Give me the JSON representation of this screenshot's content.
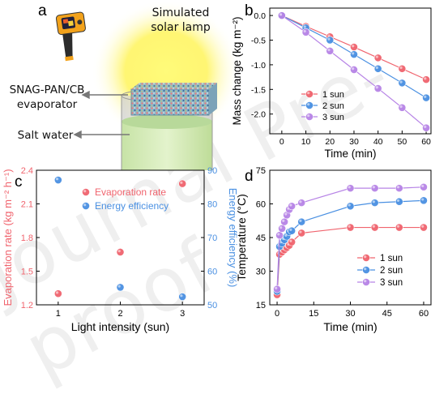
{
  "panels": {
    "a": "a",
    "b": "b",
    "c": "c",
    "d": "d"
  },
  "watermark": "Journal Pre-proof",
  "schematic": {
    "lamp_label_line1": "Simulated",
    "lamp_label_line2": "solar lamp",
    "evaporator_label_line1": "SNAG-PAN/CB",
    "evaporator_label_line2": "evaporator",
    "water_label": "Salt water",
    "icons": [
      "thermal-camera-icon",
      "solar-lamp-glow",
      "beaker-icon",
      "evaporator-block"
    ],
    "colors": {
      "glow": "#fff45a",
      "water": "#d5ebb8",
      "camera_body": "#f2a21b"
    }
  },
  "chart_data": [
    {
      "id": "b",
      "type": "line",
      "xlabel": "Time (min)",
      "ylabel": "Mass change (kg m⁻²)",
      "xlim": [
        -5,
        62
      ],
      "ylim": [
        -2.4,
        0.15
      ],
      "xticks": [
        0,
        10,
        20,
        30,
        40,
        50,
        60
      ],
      "yticks": [
        0.0,
        -0.5,
        -1.0,
        -1.5,
        -2.0
      ],
      "ytick_labels": [
        "0.0",
        "-0.5",
        "-1.0",
        "-1.5",
        "-2.0"
      ],
      "legend_position": "lower-left-inside",
      "x": [
        0,
        10,
        20,
        30,
        40,
        50,
        60
      ],
      "series": [
        {
          "name": "1 sun",
          "color": "#f0646e",
          "values": [
            0,
            -0.22,
            -0.43,
            -0.64,
            -0.86,
            -1.08,
            -1.3
          ]
        },
        {
          "name": "2 sun",
          "color": "#4a90e2",
          "values": [
            0,
            -0.25,
            -0.5,
            -0.79,
            -1.08,
            -1.37,
            -1.67
          ]
        },
        {
          "name": "3 sun",
          "color": "#b784e6",
          "values": [
            0,
            -0.34,
            -0.72,
            -1.1,
            -1.48,
            -1.87,
            -2.28
          ]
        }
      ]
    },
    {
      "id": "c",
      "type": "scatter",
      "xlabel": "Light intensity (sun)",
      "ylabel_left": "Evaporation rate (kg m⁻² h⁻¹)",
      "ylabel_right": "Energy efficiency (%)",
      "xlim": [
        0.65,
        3.35
      ],
      "ylim_left": [
        1.2,
        2.4
      ],
      "ylim_right": [
        50,
        90
      ],
      "xticks": [
        1,
        2,
        3
      ],
      "yticks_left": [
        1.2,
        1.5,
        1.8,
        2.1,
        2.4
      ],
      "yticks_right": [
        50,
        60,
        70,
        80,
        90
      ],
      "legend_position": "upper-center",
      "series": [
        {
          "name": "Evaporation rate",
          "axis": "left",
          "color": "#f0646e",
          "x": [
            1,
            2,
            3
          ],
          "values": [
            1.3,
            1.67,
            2.28
          ]
        },
        {
          "name": "Energy efficiency",
          "axis": "right",
          "color": "#4a90e2",
          "x": [
            1,
            2,
            3
          ],
          "values": [
            87.1,
            55.2,
            52.4
          ]
        }
      ]
    },
    {
      "id": "d",
      "type": "line",
      "xlabel": "Time (min)",
      "ylabel": "Temperature (°C)",
      "xlim": [
        -3,
        63
      ],
      "ylim": [
        15,
        75
      ],
      "xticks": [
        0,
        15,
        30,
        45,
        60
      ],
      "yticks": [
        15,
        30,
        45,
        60,
        75
      ],
      "legend_position": "lower-right-inside",
      "x": [
        0,
        1,
        2,
        3,
        4,
        5,
        6,
        10,
        30,
        40,
        50,
        60
      ],
      "series": [
        {
          "name": "1 sun",
          "color": "#f0646e",
          "values": [
            19.5,
            37.5,
            38.5,
            39.5,
            40.5,
            41.5,
            43,
            47,
            49.5,
            49.5,
            49.5,
            49.5
          ]
        },
        {
          "name": "2 sun",
          "color": "#4a90e2",
          "values": [
            21,
            41,
            42.5,
            44,
            45.5,
            47.5,
            48,
            52,
            59,
            60.5,
            61,
            61.5
          ]
        },
        {
          "name": "3 sun",
          "color": "#b784e6",
          "values": [
            22,
            46,
            49,
            52,
            55,
            57.5,
            59,
            60.5,
            67,
            67,
            67,
            67.5
          ]
        }
      ]
    }
  ]
}
